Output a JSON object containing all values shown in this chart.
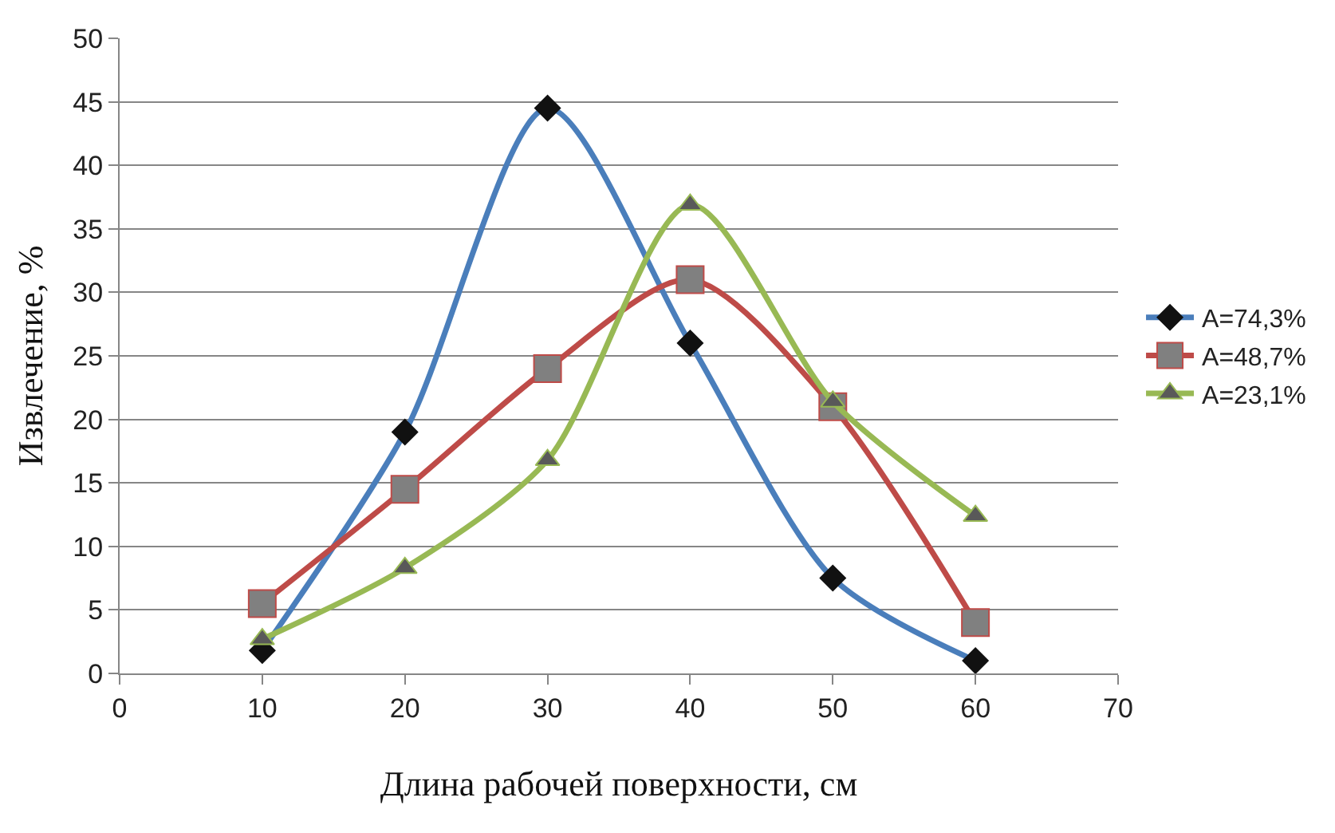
{
  "chart_data": {
    "type": "line",
    "xlabel": "Длина рабочей поверхности, см",
    "ylabel": "Извлечение, %",
    "x": [
      10,
      20,
      30,
      40,
      50,
      60
    ],
    "xlim": [
      0,
      70
    ],
    "xticks": [
      0,
      10,
      20,
      30,
      40,
      50,
      60,
      70
    ],
    "ylim": [
      0,
      50
    ],
    "yticks": [
      0,
      5,
      10,
      15,
      20,
      25,
      30,
      35,
      40,
      45,
      50
    ],
    "grid": "y",
    "legend": "right",
    "line_style": "solid",
    "series": [
      {
        "name": "A=74,3%",
        "color": "#4a7ebb",
        "marker": "diamond",
        "values": [
          1.8,
          19,
          44.5,
          26,
          7.5,
          1
        ]
      },
      {
        "name": "A=48,7%",
        "color": "#be4b48",
        "marker": "square",
        "values": [
          5.5,
          14.5,
          24,
          31,
          21,
          4
        ]
      },
      {
        "name": "A=23,1%",
        "color": "#98b954",
        "marker": "triangle",
        "values": [
          2.7,
          8.3,
          16.8,
          36.9,
          21.4,
          12.4
        ]
      }
    ]
  }
}
